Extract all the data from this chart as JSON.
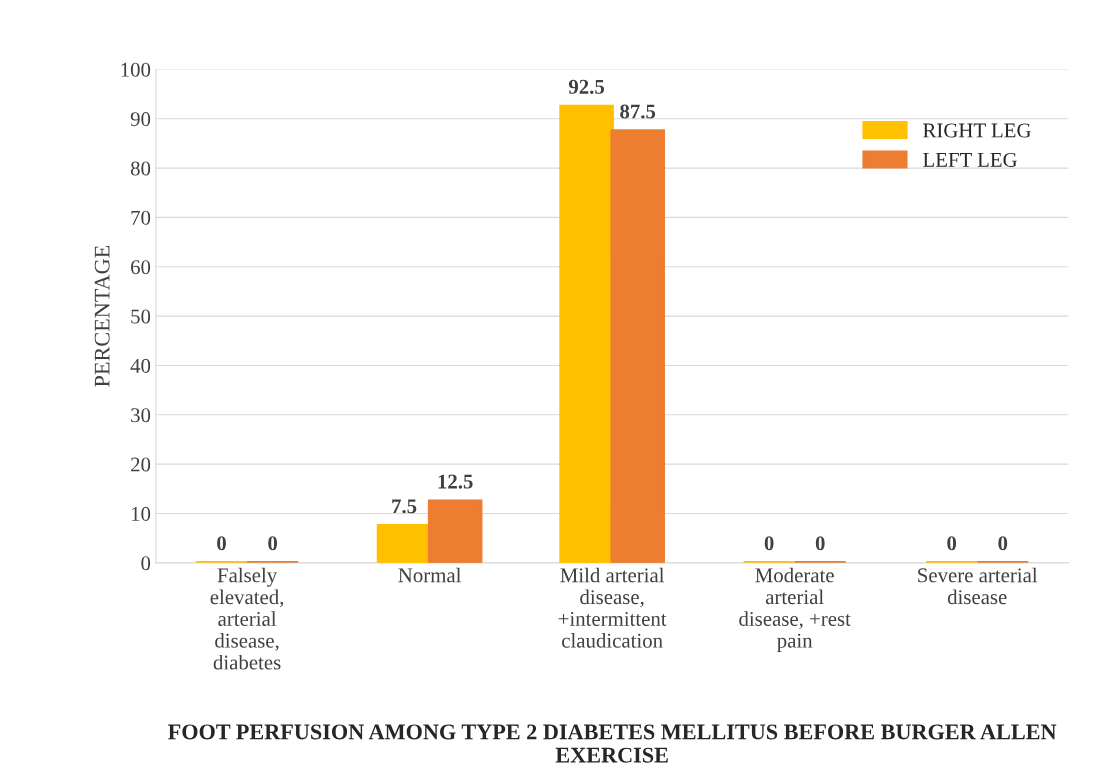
{
  "chart_data": {
    "type": "bar",
    "title": "FOOT PERFUSION AMONG TYPE 2 DIABETES MELLITUS BEFORE BURGER ALLEN EXERCISE",
    "ylabel": "PERCENTAGE",
    "categories": [
      "Falsely elevated, arterial disease, diabetes",
      "Normal",
      "Mild arterial disease, +intermittent claudication",
      "Moderate arterial disease, +rest pain",
      "Severe arterial disease"
    ],
    "series": [
      {
        "name": "RIGHT LEG",
        "color": "#ffc000",
        "values": [
          0,
          7.5,
          92.5,
          0,
          0
        ]
      },
      {
        "name": "LEFT LEG",
        "color": "#ed7d31",
        "values": [
          0,
          12.5,
          87.5,
          0,
          0
        ]
      }
    ],
    "ylim": [
      0,
      100
    ],
    "yticks": [
      0,
      10,
      20,
      30,
      40,
      50,
      60,
      70,
      80,
      90,
      100
    ],
    "grid": "y",
    "legend": "top right",
    "data_labels": true
  }
}
